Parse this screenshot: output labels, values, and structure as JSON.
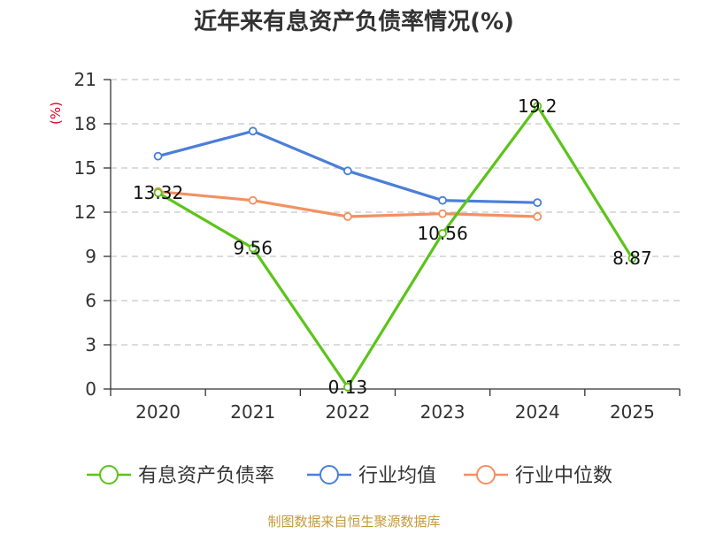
{
  "chart_data": {
    "type": "line",
    "title": "近年来有息资产负债率情况(%)",
    "ylabel": "(%)",
    "xlabel": "",
    "categories": [
      "2020",
      "2021",
      "2022",
      "2023",
      "2024",
      "2025"
    ],
    "ylim": [
      0,
      21
    ],
    "yticks": [
      0,
      3,
      6,
      9,
      12,
      15,
      18,
      21
    ],
    "grid": true,
    "legend_position": "bottom",
    "series": [
      {
        "name": "有息资产负债率",
        "color": "#5cc41a",
        "values": [
          13.32,
          9.56,
          0.13,
          10.56,
          19.2,
          8.87
        ],
        "labels": [
          "13.32",
          "9.56",
          "0.13",
          "10.56",
          "19.2",
          "8.87"
        ]
      },
      {
        "name": "行业均值",
        "color": "#4b7fd8",
        "values": [
          15.8,
          17.5,
          14.8,
          12.8,
          12.65,
          null
        ]
      },
      {
        "name": "行业中位数",
        "color": "#f39061",
        "values": [
          13.4,
          12.8,
          11.7,
          11.9,
          11.7,
          null
        ]
      }
    ]
  },
  "source": "制图数据来自恒生聚源数据库",
  "colors": {
    "title": "#333333",
    "ylabel": "#d0021b",
    "axis": "#333333",
    "grid": "#c8c8c8",
    "source": "#c49a3a"
  }
}
